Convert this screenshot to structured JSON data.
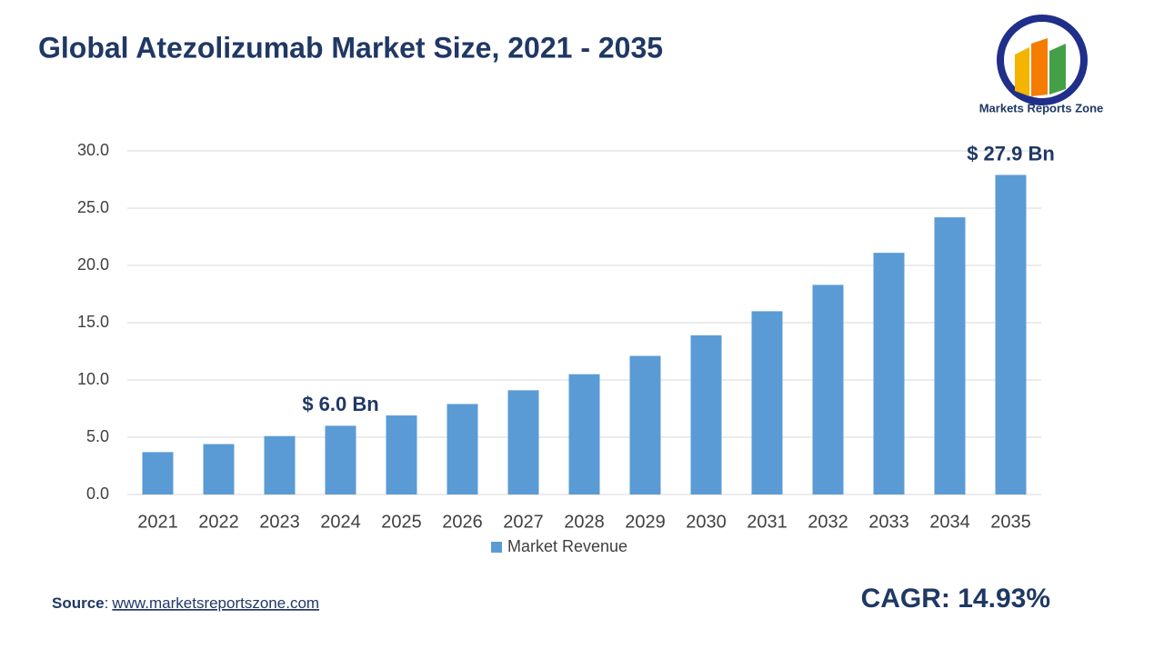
{
  "chart_data": {
    "type": "bar",
    "title": "Global Atezolizumab Market Size, 2021 - 2035",
    "categories": [
      "2021",
      "2022",
      "2023",
      "2024",
      "2025",
      "2026",
      "2027",
      "2028",
      "2029",
      "2030",
      "2031",
      "2032",
      "2033",
      "2034",
      "2035"
    ],
    "series": [
      {
        "name": "Market Revenue",
        "color": "#5b9bd5",
        "values": [
          3.7,
          4.4,
          5.1,
          6.0,
          6.9,
          7.9,
          9.1,
          10.5,
          12.1,
          13.9,
          16.0,
          18.3,
          21.1,
          24.2,
          27.9
        ],
        "value_labels": [
          null,
          null,
          null,
          "$ 6.0 Bn",
          null,
          null,
          null,
          null,
          null,
          null,
          null,
          null,
          null,
          null,
          "$ 27.9 Bn"
        ]
      }
    ],
    "ylim": [
      0,
      30
    ],
    "yticks": [
      {
        "value": 0,
        "label": "0.0"
      },
      {
        "value": 5,
        "label": "5.0"
      },
      {
        "value": 10,
        "label": "10.0"
      },
      {
        "value": 15,
        "label": "15.0"
      },
      {
        "value": 20,
        "label": "20.0"
      },
      {
        "value": 25,
        "label": "25.0"
      },
      {
        "value": 30,
        "label": "30.0"
      }
    ],
    "grid": true
  },
  "source": {
    "label": "Source",
    "separator": ":",
    "url": "www.marketsreportszone.com"
  },
  "cagr": "CAGR: 14.93%",
  "logo": "Markets Reports Zone"
}
